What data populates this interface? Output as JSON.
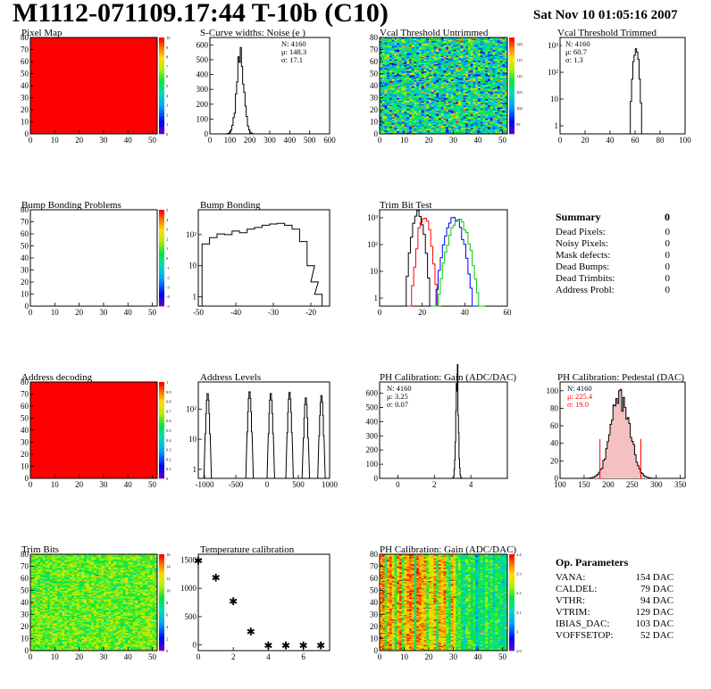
{
  "header": {
    "title": "M1112-071109.17:44 T-10b (C10)",
    "date": "Sat Nov 10 01:05:16 2007"
  },
  "chart_data": [
    {
      "id": "pixel-map",
      "type": "heatmap",
      "title": "Pixel Map",
      "x_ticks": [
        "0",
        "10",
        "20",
        "30",
        "40",
        "50"
      ],
      "y_ticks": [
        "0",
        "10",
        "20",
        "30",
        "40",
        "50",
        "60",
        "70",
        "80"
      ],
      "xlim": [
        0,
        52
      ],
      "ylim": [
        0,
        80
      ],
      "fill": "#ff0000",
      "palette_ticks": [
        "0",
        "1",
        "2",
        "3",
        "4",
        "5",
        "6",
        "7",
        "8",
        "9",
        "10"
      ],
      "palette_range": [
        0,
        10
      ]
    },
    {
      "id": "scurve-noise",
      "type": "histogram",
      "title": "S-Curve widths: Noise (e )",
      "xlim": [
        0,
        600
      ],
      "ylim": [
        0,
        650
      ],
      "x_ticks": [
        "0",
        "100",
        "200",
        "300",
        "400",
        "500",
        "600"
      ],
      "y_ticks": [
        "0",
        "100",
        "200",
        "300",
        "400",
        "500",
        "600"
      ],
      "stats": {
        "N": "N: 4160",
        "mean": "μ: 148.3",
        "sigma": "σ: 17.1"
      },
      "peak_x": 152,
      "peak_y": 570,
      "width": 18
    },
    {
      "id": "vcal-untrimmed",
      "type": "heatmap",
      "title": "Vcal Threshold Untrimmed",
      "x_ticks": [
        "0",
        "10",
        "20",
        "30",
        "40",
        "50"
      ],
      "y_ticks": [
        "0",
        "10",
        "20",
        "30",
        "40",
        "50",
        "60",
        "70",
        "80"
      ],
      "xlim": [
        0,
        52
      ],
      "ylim": [
        0,
        80
      ],
      "palette_ticks": [
        "95",
        "100",
        "105",
        "110",
        "115",
        "120"
      ],
      "palette_range": [
        92,
        122
      ]
    },
    {
      "id": "vcal-trimmed",
      "type": "histogram",
      "title": "Vcal Threshold Trimmed",
      "scale": "log",
      "xlim": [
        0,
        100
      ],
      "ylim_log": [
        -0.3,
        3.3
      ],
      "x_ticks": [
        "0",
        "20",
        "40",
        "60",
        "80",
        "100"
      ],
      "y_ticks": [
        "1",
        "10",
        "10²",
        "10³"
      ],
      "stats": {
        "N": "N: 4160",
        "mean": "μ: 60.7",
        "sigma": "σ:  1.3"
      },
      "peak_x": 60.7,
      "peak_y": 800,
      "width": 1.3
    },
    {
      "id": "bump-problems",
      "type": "heatmap",
      "title": "Bump Bonding Problems",
      "x_ticks": [
        "0",
        "10",
        "20",
        "30",
        "40",
        "50"
      ],
      "y_ticks": [
        "0",
        "10",
        "20",
        "30",
        "40",
        "50",
        "60",
        "70",
        "80"
      ],
      "xlim": [
        0,
        52
      ],
      "ylim": [
        0,
        80
      ],
      "fill": "#ffffff",
      "palette_ticks": [
        "-5",
        "-4",
        "-3",
        "-2",
        "-1",
        "0",
        "1",
        "2",
        "3",
        "4",
        "5"
      ],
      "palette_range": [
        -5,
        5
      ]
    },
    {
      "id": "bump-bonding",
      "type": "histogram",
      "title": "Bump Bonding",
      "scale": "log",
      "xlim": [
        -50,
        -15
      ],
      "ylim_log": [
        -0.3,
        2.8
      ],
      "x_ticks": [
        "-50",
        "-40",
        "-30",
        "-20"
      ],
      "y_ticks": [
        "1",
        "10",
        "10²"
      ],
      "bins_x": [
        -49,
        -47,
        -45,
        -43,
        -41,
        -39,
        -37,
        -35,
        -33,
        -31,
        -29,
        -27,
        -25,
        -23,
        -21,
        -20,
        -19
      ],
      "bins_y": [
        50,
        80,
        105,
        100,
        130,
        115,
        150,
        170,
        200,
        220,
        230,
        200,
        150,
        60,
        10,
        3,
        1.2
      ]
    },
    {
      "id": "trim-bit-test",
      "type": "histogram",
      "title": "Trim Bit Test",
      "scale": "log",
      "xlim": [
        0,
        60
      ],
      "ylim_log": [
        -0.3,
        3.3
      ],
      "x_ticks": [
        "0",
        "20",
        "40",
        "60"
      ],
      "y_ticks": [
        "1",
        "10",
        "10²",
        "10³"
      ],
      "series": [
        {
          "color": "#000000",
          "peak": 18,
          "height": 1500,
          "w": 1.5
        },
        {
          "color": "#ff0000",
          "peak": 21,
          "height": 1000,
          "w": 1.6
        },
        {
          "color": "#0000ff",
          "peak": 35,
          "height": 1000,
          "w": 2.3
        },
        {
          "color": "#00cc00",
          "peak": 37,
          "height": 900,
          "w": 2.5
        }
      ]
    },
    {
      "id": "address-decoding",
      "type": "heatmap",
      "title": "Address decoding",
      "x_ticks": [
        "0",
        "10",
        "20",
        "30",
        "40",
        "50"
      ],
      "y_ticks": [
        "0",
        "10",
        "20",
        "30",
        "40",
        "50",
        "60",
        "70",
        "80"
      ],
      "xlim": [
        0,
        52
      ],
      "ylim": [
        0,
        80
      ],
      "fill": "#ff0000",
      "palette_ticks": [
        "0",
        "0.1",
        "0.2",
        "0.3",
        "0.4",
        "0.5",
        "0.6",
        "0.7",
        "0.8",
        "0.9",
        "1"
      ],
      "palette_range": [
        0,
        1
      ]
    },
    {
      "id": "address-levels",
      "type": "histogram",
      "title": "Address Levels",
      "scale": "log",
      "xlim": [
        -1100,
        1000
      ],
      "ylim_log": [
        -0.3,
        2.9
      ],
      "x_ticks": [
        "-1000",
        "-500",
        "0",
        "500",
        "1000"
      ],
      "y_ticks": [
        "1",
        "10",
        "10²"
      ],
      "peaks_x": [
        -950,
        -280,
        60,
        360,
        620,
        870
      ],
      "peaks_y": [
        350,
        400,
        350,
        380,
        250,
        300
      ]
    },
    {
      "id": "ph-gain",
      "type": "histogram",
      "title": "PH Calibration: Gain (ADC/DAC)",
      "xlim": [
        -1,
        6
      ],
      "ylim": [
        0,
        680
      ],
      "x_ticks": [
        "0",
        "2",
        "4"
      ],
      "y_ticks": [
        "0",
        "100",
        "200",
        "300",
        "400",
        "500",
        "600"
      ],
      "stats": {
        "N": "N: 4160",
        "mean": "μ: 3.25",
        "sigma": "σ: 0.07"
      },
      "peak_x": 3.25,
      "peak_y": 640,
      "width": 0.07
    },
    {
      "id": "ph-pedestal",
      "type": "histogram",
      "title": "PH Calibration: Pedestal (DAC)",
      "xlim": [
        100,
        360
      ],
      "ylim": [
        0,
        110
      ],
      "x_ticks": [
        "100",
        "150",
        "200",
        "250",
        "300",
        "350"
      ],
      "y_ticks": [
        "0",
        "20",
        "40",
        "60",
        "80",
        "100"
      ],
      "stats": {
        "N": "N: 4160",
        "mean": "μ: 225.4",
        "sigma": "σ: 19.0"
      },
      "peak_x": 225.4,
      "peak_y": 98,
      "width": 19,
      "fit_lines": [
        183,
        268
      ],
      "fit_color": "#ff0000"
    },
    {
      "id": "trim-bits",
      "type": "heatmap",
      "title": "Trim Bits",
      "x_ticks": [
        "0",
        "10",
        "20",
        "30",
        "40",
        "50"
      ],
      "y_ticks": [
        "0",
        "10",
        "20",
        "30",
        "40",
        "50",
        "60",
        "70",
        "80"
      ],
      "xlim": [
        0,
        52
      ],
      "ylim": [
        0,
        80
      ],
      "palette_ticks": [
        "0",
        "2",
        "4",
        "6",
        "8",
        "10",
        "12",
        "14",
        "16"
      ],
      "palette_range": [
        0,
        16
      ]
    },
    {
      "id": "temperature-calibration",
      "type": "scatter",
      "title": "Temperature calibration",
      "xlim": [
        0,
        7.5
      ],
      "ylim": [
        -100,
        1600
      ],
      "x_ticks": [
        "0",
        "2",
        "4",
        "6"
      ],
      "y_ticks": [
        "0",
        "500",
        "1000",
        "1500"
      ],
      "x": [
        0,
        1,
        2,
        3,
        4,
        5,
        6,
        7
      ],
      "y": [
        1500,
        1200,
        780,
        250,
        0,
        0,
        0,
        0
      ],
      "marker": "*"
    },
    {
      "id": "ph-gain-map",
      "type": "heatmap",
      "title": "PH Calibration: Gain (ADC/DAC)",
      "x_ticks": [
        "0",
        "10",
        "20",
        "30",
        "40",
        "50"
      ],
      "y_ticks": [
        "0",
        "10",
        "20",
        "30",
        "40",
        "50",
        "60",
        "70",
        "80"
      ],
      "xlim": [
        0,
        52
      ],
      "ylim": [
        0,
        80
      ],
      "palette_ticks": [
        "2.9",
        "3",
        "3.1",
        "3.2",
        "3.3",
        "3.4"
      ],
      "palette_range": [
        2.9,
        3.4
      ]
    }
  ],
  "summary": {
    "title": "Summary",
    "total": "0",
    "rows": [
      {
        "label": "Dead Pixels:",
        "value": "0"
      },
      {
        "label": "Noisy Pixels:",
        "value": "0"
      },
      {
        "label": "Mask defects:",
        "value": "0"
      },
      {
        "label": "Dead Bumps:",
        "value": "0"
      },
      {
        "label": "Dead Trimbits:",
        "value": "0"
      },
      {
        "label": "Address Probl:",
        "value": "0"
      }
    ]
  },
  "op_parameters": {
    "title": "Op. Parameters",
    "rows": [
      {
        "label": "VANA:",
        "value": "154 DAC"
      },
      {
        "label": "CALDEL:",
        "value": "79 DAC"
      },
      {
        "label": "VTHR:",
        "value": "94 DAC"
      },
      {
        "label": "VTRIM:",
        "value": "129 DAC"
      },
      {
        "label": "IBIAS_DAC:",
        "value": "103 DAC"
      },
      {
        "label": "VOFFSETOP:",
        "value": "52 DAC"
      }
    ]
  }
}
